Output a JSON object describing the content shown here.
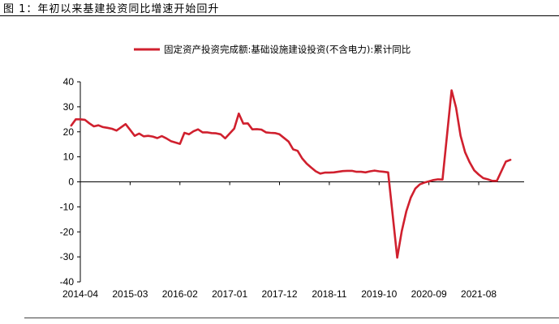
{
  "figure": {
    "caption": "图 1：年初以来基建投资同比增速开始回升"
  },
  "colors": {
    "series": "#D0202E",
    "axis": "#000000"
  },
  "chart_data": {
    "type": "line",
    "title": "",
    "xlabel": "",
    "ylabel": "",
    "ylim": [
      -40,
      40
    ],
    "yticks": [
      40,
      30,
      20,
      10,
      0,
      -10,
      -20,
      -30,
      -40
    ],
    "xticks": [
      "2014-04",
      "2015-03",
      "2016-02",
      "2017-01",
      "2017-12",
      "2018-11",
      "2019-10",
      "2020-09",
      "2021-08"
    ],
    "legend": {
      "position": "top"
    },
    "grid": false,
    "series": [
      {
        "name": "固定资产投资完成额:基础设施建设投资(不含电力):累计同比",
        "x": [
          "2014-02",
          "2014-03",
          "2014-04",
          "2014-05",
          "2014-06",
          "2014-07",
          "2014-08",
          "2014-09",
          "2014-10",
          "2014-11",
          "2014-12",
          "2015-02",
          "2015-03",
          "2015-04",
          "2015-05",
          "2015-06",
          "2015-07",
          "2015-08",
          "2015-09",
          "2015-10",
          "2015-11",
          "2015-12",
          "2016-02",
          "2016-03",
          "2016-04",
          "2016-05",
          "2016-06",
          "2016-07",
          "2016-08",
          "2016-09",
          "2016-10",
          "2016-11",
          "2016-12",
          "2017-02",
          "2017-03",
          "2017-04",
          "2017-05",
          "2017-06",
          "2017-07",
          "2017-08",
          "2017-09",
          "2017-10",
          "2017-11",
          "2017-12",
          "2018-02",
          "2018-03",
          "2018-04",
          "2018-05",
          "2018-06",
          "2018-07",
          "2018-08",
          "2018-09",
          "2018-10",
          "2018-11",
          "2018-12",
          "2019-02",
          "2019-03",
          "2019-04",
          "2019-05",
          "2019-06",
          "2019-07",
          "2019-08",
          "2019-09",
          "2019-10",
          "2019-11",
          "2019-12",
          "2020-02",
          "2020-03",
          "2020-04",
          "2020-05",
          "2020-06",
          "2020-07",
          "2020-08",
          "2020-09",
          "2020-10",
          "2020-11",
          "2020-12",
          "2021-02",
          "2021-03",
          "2021-04",
          "2021-05",
          "2021-06",
          "2021-07",
          "2021-08",
          "2021-09",
          "2021-10",
          "2021-11",
          "2021-12",
          "2022-02",
          "2022-03"
        ],
        "values": [
          22.5,
          25.0,
          25.0,
          24.8,
          23.4,
          22.2,
          22.6,
          21.9,
          21.6,
          21.2,
          20.5,
          23.1,
          20.8,
          18.4,
          19.3,
          18.2,
          18.4,
          18.1,
          17.5,
          18.3,
          17.4,
          16.3,
          15.2,
          19.6,
          19.0,
          20.2,
          21.0,
          19.8,
          19.8,
          19.5,
          19.4,
          19.0,
          17.4,
          21.3,
          27.3,
          23.3,
          23.4,
          21.0,
          21.1,
          20.9,
          19.8,
          19.6,
          19.5,
          19.0,
          16.1,
          13.0,
          12.4,
          9.4,
          7.3,
          5.7,
          4.2,
          3.3,
          3.7,
          3.7,
          3.8,
          4.3,
          4.4,
          4.4,
          4.0,
          4.0,
          3.8,
          4.2,
          4.5,
          4.2,
          4.0,
          3.8,
          -30.3,
          -19.7,
          -11.8,
          -6.3,
          -2.7,
          -1.0,
          -0.3,
          0.2,
          0.7,
          1.0,
          0.9,
          36.6,
          29.7,
          18.4,
          11.8,
          7.8,
          4.6,
          2.9,
          1.5,
          1.0,
          0.4,
          0.4,
          8.1,
          8.8
        ]
      }
    ]
  }
}
